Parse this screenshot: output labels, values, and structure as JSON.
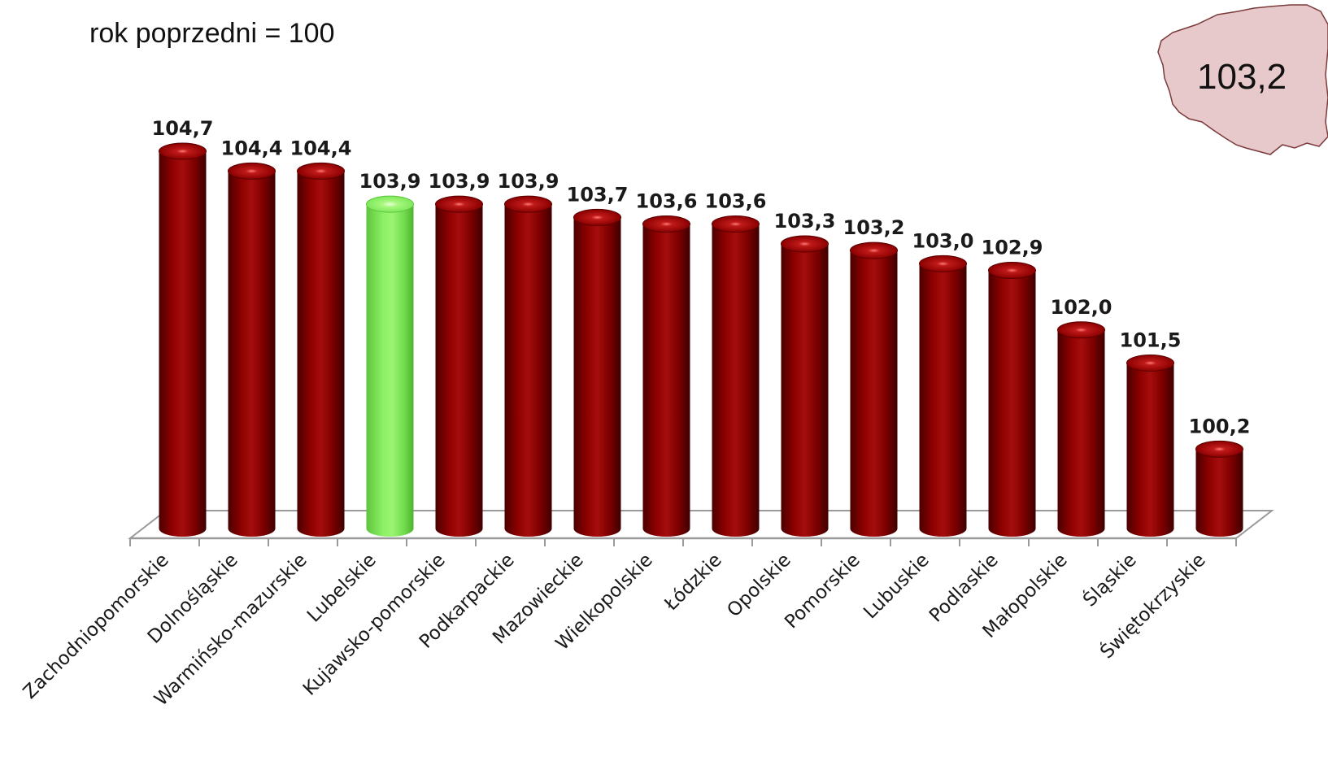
{
  "chart_data": {
    "type": "bar",
    "subtitle": "rok poprzedni = 100",
    "categories": [
      "Zachodniopomorskie",
      "Dolnośląskie",
      "Warmińsko-mazurskie",
      "Lubelskie",
      "Kujawsko-pomorskie",
      "Podkarpackie",
      "Mazowieckie",
      "Wielkopolskie",
      "Łódzkie",
      "Opolskie",
      "Pomorskie",
      "Lubuskie",
      "Podlaskie",
      "Małopolskie",
      "Śląskie",
      "Świętokrzyskie"
    ],
    "values": [
      104.7,
      104.4,
      104.4,
      103.9,
      103.9,
      103.9,
      103.7,
      103.6,
      103.6,
      103.3,
      103.2,
      103.0,
      102.9,
      102.0,
      101.5,
      100.2
    ],
    "value_labels": [
      "104,7",
      "104,4",
      "104,4",
      "103,9",
      "103,9",
      "103,9",
      "103,7",
      "103,6",
      "103,6",
      "103,3",
      "103,2",
      "103,0",
      "102,9",
      "102,0",
      "101,5",
      "100,2"
    ],
    "highlight": "Lubelskie",
    "colors": {
      "bar": "#8a0000",
      "highlight": "#7ee85a",
      "axis": "#9a9a9a"
    },
    "grid": false,
    "legend": "none"
  },
  "inset": {
    "icon": "poland-map-icon",
    "value_label": "103,2",
    "fill": "#e6c4c6"
  }
}
